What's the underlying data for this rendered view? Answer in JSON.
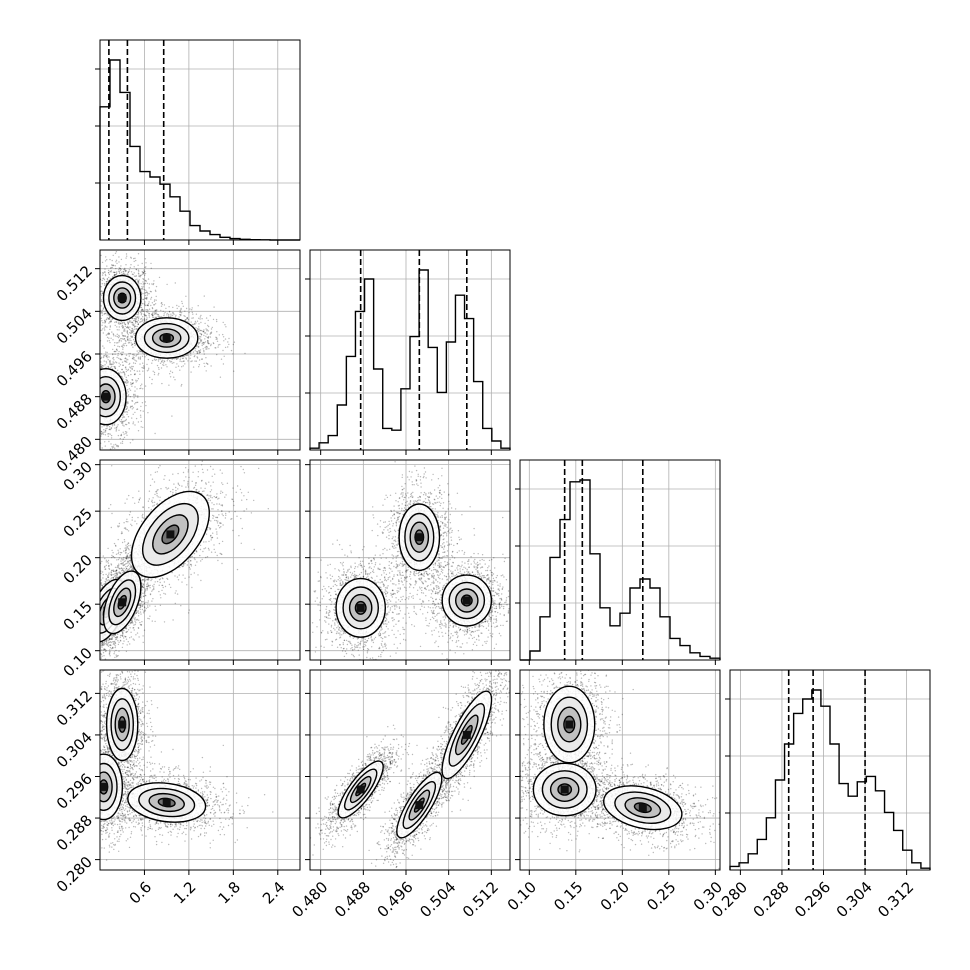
{
  "chart_data": {
    "type": "corner",
    "grid": true,
    "colors": {
      "line": "#000000",
      "grid": "#b0b0b0",
      "points": "#000000",
      "frame": "#000000"
    },
    "params": [
      {
        "range": [
          0.0,
          2.7
        ],
        "ticks": [
          "0.6",
          "1.2",
          "1.8",
          "2.4"
        ],
        "tick_values": [
          0.6,
          1.2,
          1.8,
          2.4
        ]
      },
      {
        "range": [
          0.478,
          0.5155
        ],
        "ticks": [
          "0.480",
          "0.488",
          "0.496",
          "0.504",
          "0.512"
        ],
        "tick_values": [
          0.48,
          0.488,
          0.496,
          0.504,
          0.512
        ]
      },
      {
        "range": [
          0.09,
          0.305
        ],
        "ticks": [
          "0.10",
          "0.15",
          "0.20",
          "0.25",
          "0.30"
        ],
        "tick_values": [
          0.1,
          0.15,
          0.2,
          0.25,
          0.3
        ]
      },
      {
        "range": [
          0.278,
          0.3165
        ],
        "ticks": [
          "0.280",
          "0.288",
          "0.296",
          "0.304",
          "0.312"
        ],
        "tick_values": [
          0.28,
          0.288,
          0.296,
          0.304,
          0.312
        ]
      }
    ],
    "quantiles": [
      [
        0.12,
        0.37,
        0.86
      ],
      [
        0.4875,
        0.4985,
        0.5074
      ],
      [
        0.138,
        0.157,
        0.222
      ],
      [
        0.2893,
        0.294,
        0.304
      ]
    ],
    "histograms": [
      [
        0.74,
        1.0,
        0.82,
        0.52,
        0.38,
        0.35,
        0.31,
        0.24,
        0.16,
        0.08,
        0.05,
        0.03,
        0.015,
        0.008,
        0.004,
        0.002,
        0.001,
        0,
        0,
        0
      ],
      [
        0.01,
        0.04,
        0.08,
        0.25,
        0.52,
        0.77,
        0.95,
        0.45,
        0.12,
        0.11,
        0.34,
        0.63,
        1.0,
        0.57,
        0.32,
        0.6,
        0.86,
        0.73,
        0.38,
        0.12,
        0.05,
        0.01
      ],
      [
        0.0,
        0.05,
        0.24,
        0.57,
        0.78,
        0.99,
        1.0,
        0.59,
        0.29,
        0.19,
        0.26,
        0.4,
        0.45,
        0.4,
        0.24,
        0.12,
        0.08,
        0.04,
        0.02,
        0.01
      ],
      [
        0.02,
        0.04,
        0.09,
        0.17,
        0.29,
        0.5,
        0.7,
        0.87,
        0.95,
        1.0,
        0.91,
        0.7,
        0.48,
        0.41,
        0.49,
        0.52,
        0.44,
        0.32,
        0.22,
        0.11,
        0.04,
        0.01
      ]
    ],
    "modes": {
      "1_0": [
        {
          "mx": 0.3,
          "my": 0.5065,
          "sx": 0.12,
          "sy": 0.002,
          "rho": 0.0,
          "w": 1
        },
        {
          "mx": 0.9,
          "my": 0.499,
          "sx": 0.2,
          "sy": 0.0018,
          "rho": 0.0,
          "w": 1
        },
        {
          "mx": 0.08,
          "my": 0.488,
          "sx": 0.13,
          "sy": 0.0025,
          "rho": 0.0,
          "w": 1
        }
      ],
      "2_0": [
        {
          "mx": 0.1,
          "my": 0.143,
          "sx": 0.12,
          "sy": 0.016,
          "rho": 0.5,
          "w": 1
        },
        {
          "mx": 0.3,
          "my": 0.152,
          "sx": 0.12,
          "sy": 0.016,
          "rho": 0.5,
          "w": 1
        },
        {
          "mx": 0.95,
          "my": 0.225,
          "sx": 0.25,
          "sy": 0.022,
          "rho": 0.5,
          "w": 0.9
        }
      ],
      "2_1": [
        {
          "mx": 0.4875,
          "my": 0.146,
          "sx": 0.0022,
          "sy": 0.015,
          "rho": 0.0,
          "w": 1
        },
        {
          "mx": 0.4985,
          "my": 0.222,
          "sx": 0.0018,
          "sy": 0.017,
          "rho": 0.0,
          "w": 1
        },
        {
          "mx": 0.5074,
          "my": 0.154,
          "sx": 0.0022,
          "sy": 0.013,
          "rho": 0.0,
          "w": 1
        }
      ],
      "3_0": [
        {
          "mx": 0.3,
          "my": 0.306,
          "sx": 0.1,
          "sy": 0.0033,
          "rho": 0.0,
          "w": 1
        },
        {
          "mx": 0.05,
          "my": 0.294,
          "sx": 0.12,
          "sy": 0.003,
          "rho": 0.0,
          "w": 1
        },
        {
          "mx": 0.9,
          "my": 0.291,
          "sx": 0.25,
          "sy": 0.0018,
          "rho": -0.2,
          "w": 1
        }
      ],
      "3_1": [
        {
          "mx": 0.4875,
          "my": 0.2935,
          "sx": 0.002,
          "sy": 0.0026,
          "rho": 0.8,
          "w": 1
        },
        {
          "mx": 0.4985,
          "my": 0.2905,
          "sx": 0.002,
          "sy": 0.003,
          "rho": 0.8,
          "w": 1
        },
        {
          "mx": 0.5074,
          "my": 0.304,
          "sx": 0.0022,
          "sy": 0.004,
          "rho": 0.8,
          "w": 1
        }
      ],
      "3_2": [
        {
          "mx": 0.143,
          "my": 0.306,
          "sx": 0.013,
          "sy": 0.0035,
          "rho": 0.0,
          "w": 1
        },
        {
          "mx": 0.138,
          "my": 0.2935,
          "sx": 0.016,
          "sy": 0.0024,
          "rho": 0.0,
          "w": 1
        },
        {
          "mx": 0.222,
          "my": 0.29,
          "sx": 0.02,
          "sy": 0.002,
          "rho": -0.3,
          "w": 1
        }
      ]
    }
  }
}
